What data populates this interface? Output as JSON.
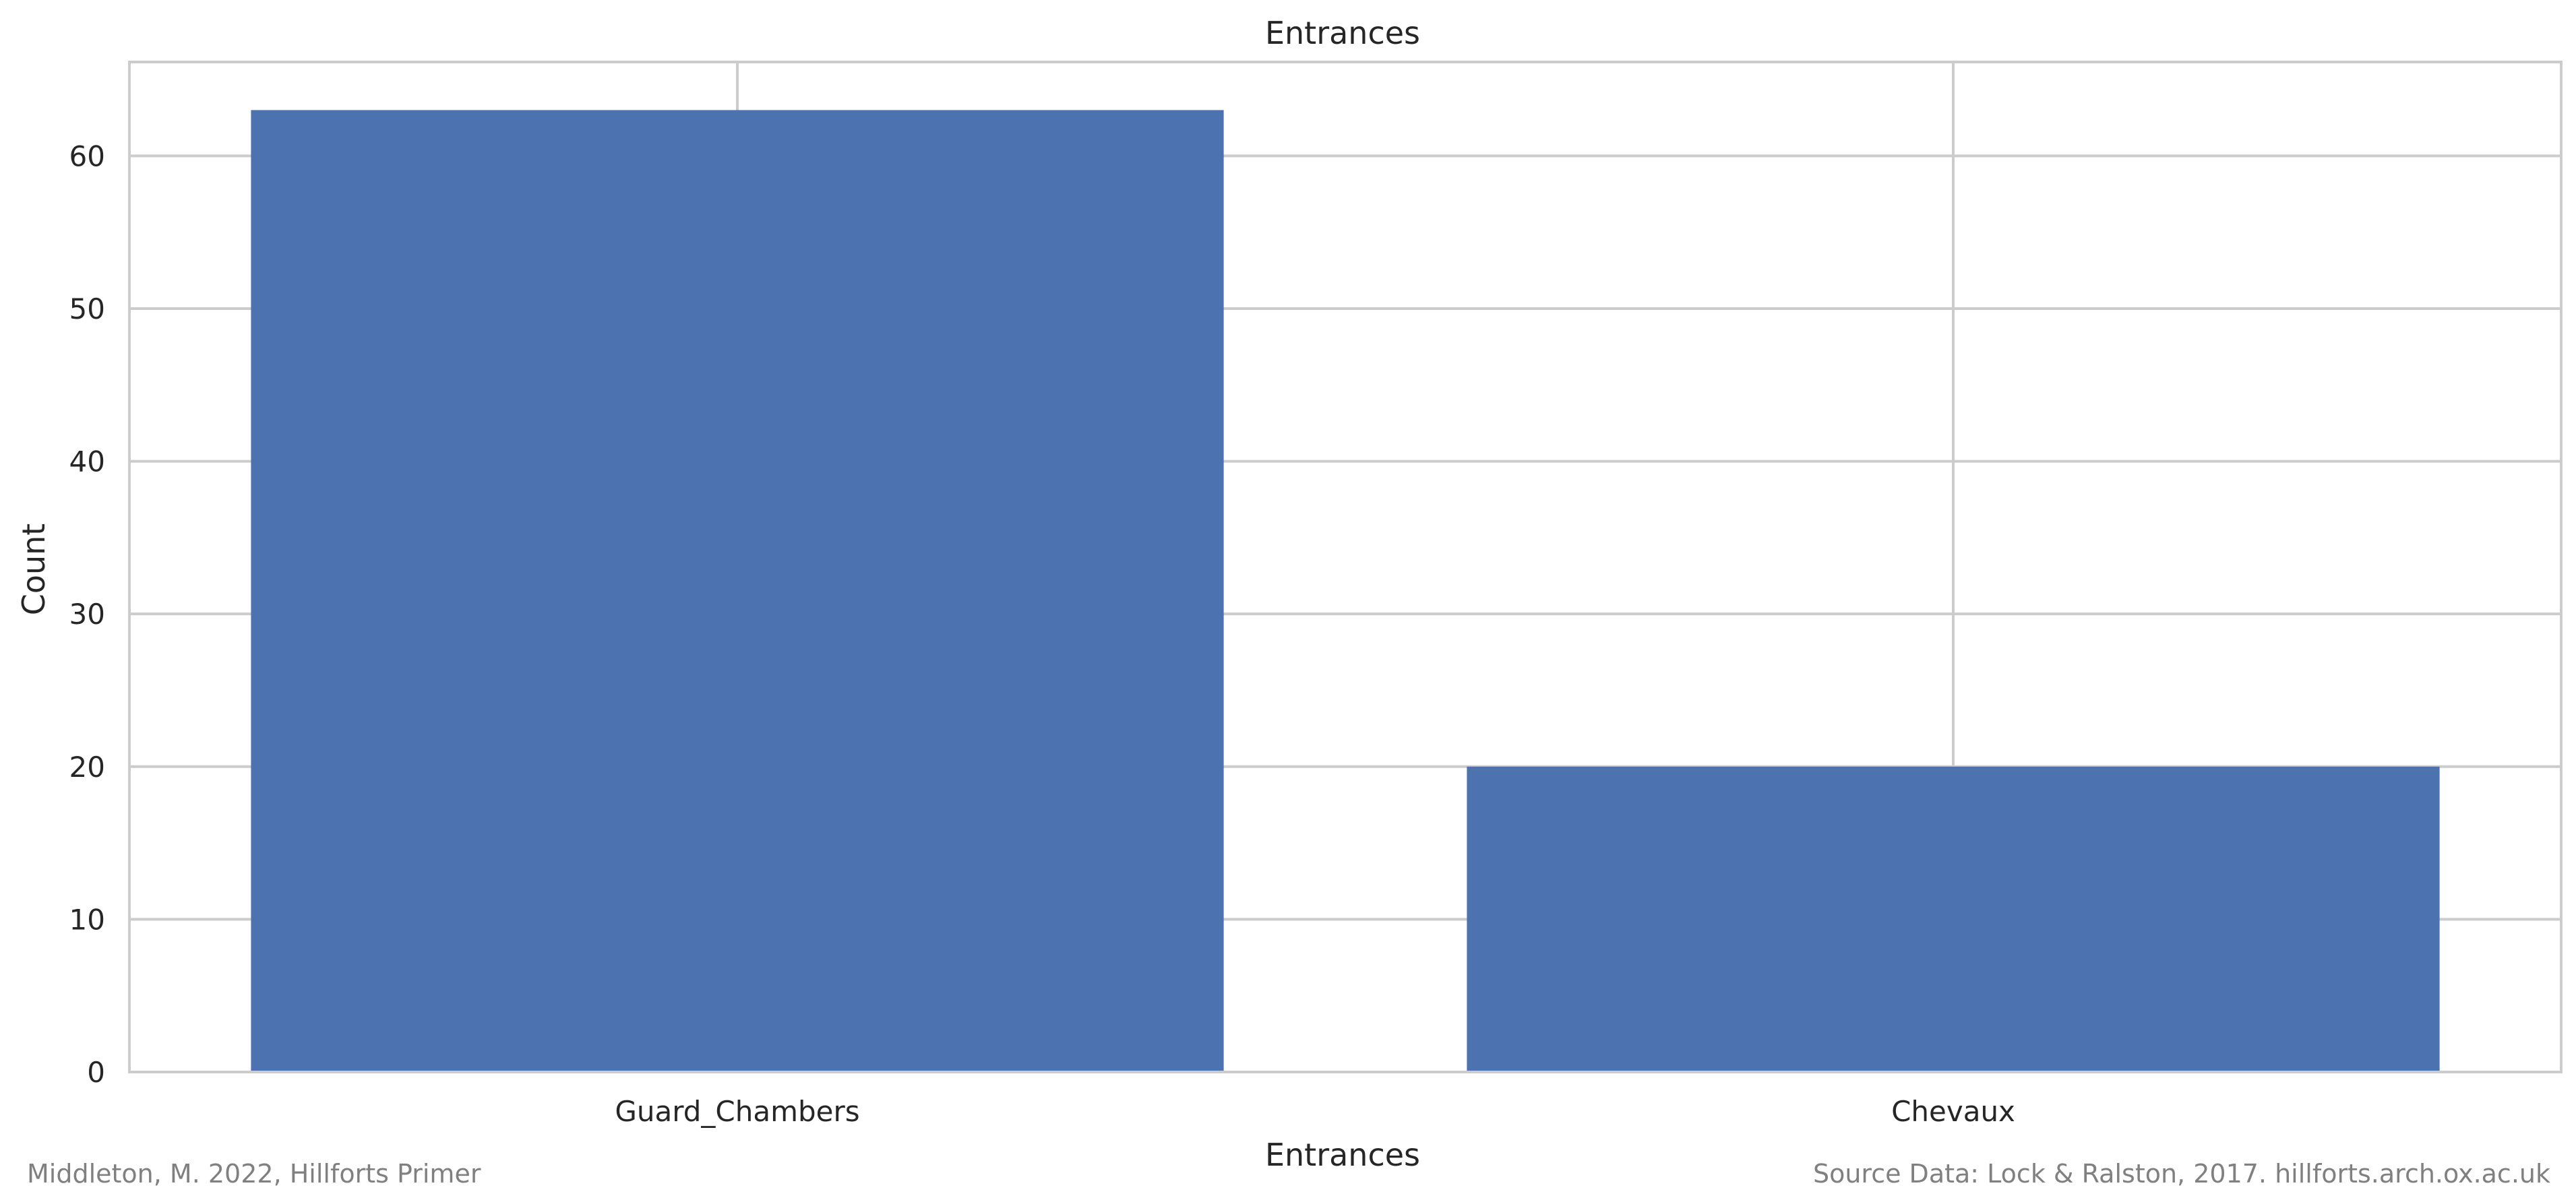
{
  "chart_data": {
    "type": "bar",
    "title": "Entrances",
    "xlabel": "Entrances",
    "ylabel": "Count",
    "categories": [
      "Guard_Chambers",
      "Chevaux"
    ],
    "values": [
      63,
      20
    ],
    "ylim": [
      0,
      66.15
    ],
    "yticks": [
      0,
      10,
      20,
      30,
      40,
      50,
      60
    ],
    "grid": true,
    "bar_color": "#4c72b0",
    "grid_color": "#cccccc"
  },
  "credits": {
    "left": "Middleton, M. 2022, Hillforts Primer",
    "right": "Source Data: Lock & Ralston, 2017. hillforts.arch.ox.ac.uk"
  }
}
